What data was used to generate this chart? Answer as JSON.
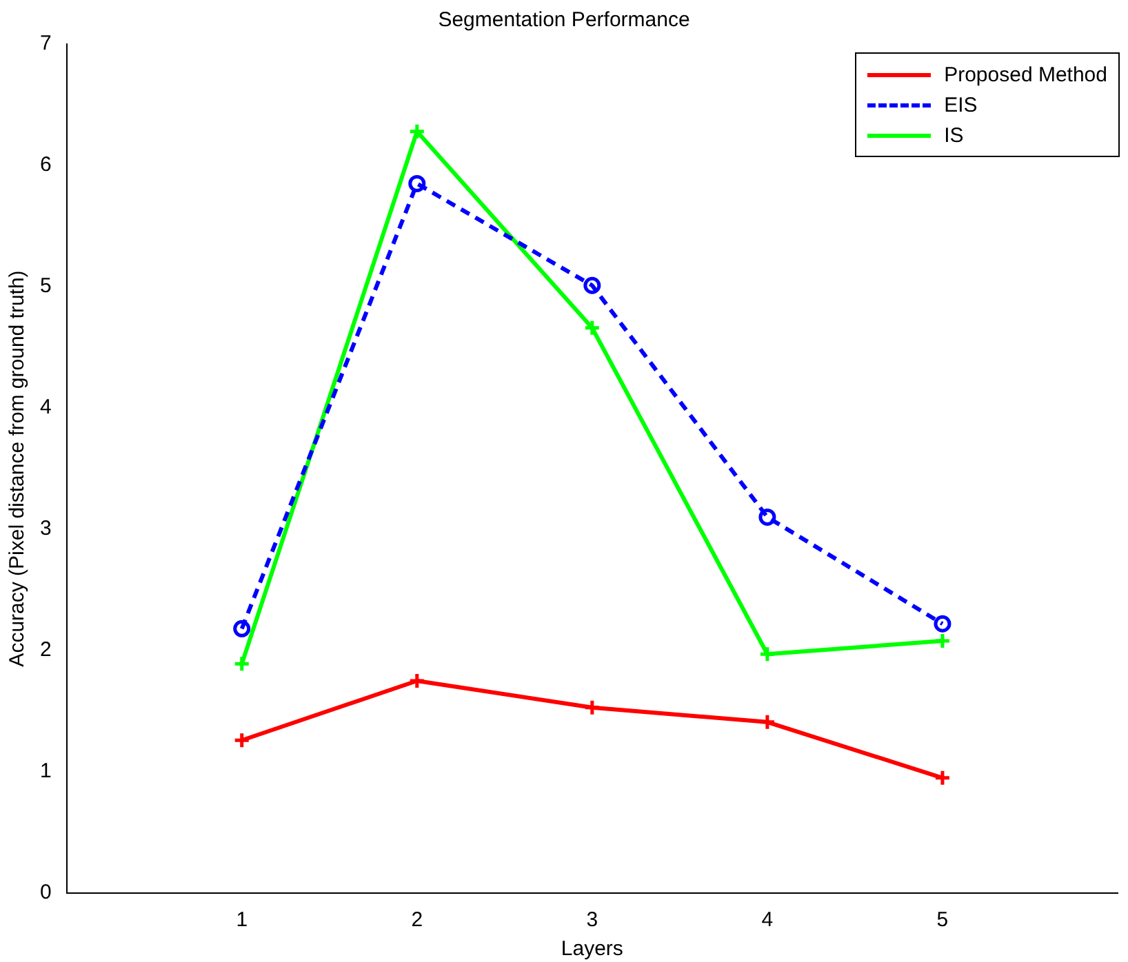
{
  "chart_data": {
    "type": "line",
    "title": "Segmentation Performance",
    "xlabel": "Layers",
    "ylabel": "Accuracy (Pixel distance from ground truth)",
    "x": [
      1,
      2,
      3,
      4,
      5
    ],
    "xlim": [
      0,
      6
    ],
    "xticks": [
      1,
      2,
      3,
      4,
      5
    ],
    "ylim": [
      0,
      7
    ],
    "yticks": [
      0,
      1,
      2,
      3,
      4,
      5,
      6,
      7
    ],
    "grid": false,
    "legend": "top right",
    "series": [
      {
        "name": "Proposed Method",
        "color": "#ff0000",
        "values": [
          1.26,
          1.75,
          1.53,
          1.41,
          0.95
        ],
        "marker": "cross",
        "line_style": "solid"
      },
      {
        "name": "EIS",
        "color": "#0000ff",
        "values": [
          2.18,
          5.85,
          5.01,
          3.1,
          2.22
        ],
        "marker": "circle",
        "line_style": "dashed"
      },
      {
        "name": "IS",
        "color": "#00ff00",
        "values": [
          1.89,
          6.28,
          4.66,
          1.97,
          2.08
        ],
        "marker": "cross",
        "line_style": "solid"
      }
    ]
  }
}
